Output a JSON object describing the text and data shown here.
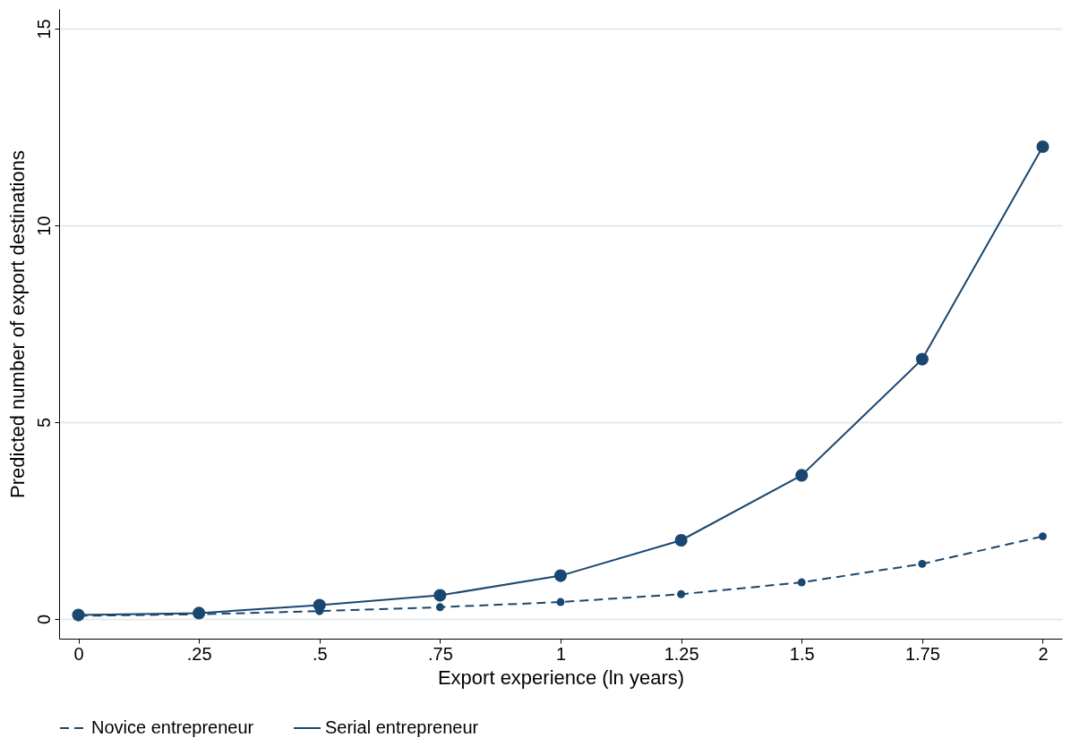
{
  "chart_data": {
    "type": "line",
    "xlabel": "Export experience (ln years)",
    "ylabel": "Predicted number of export destinations",
    "x": [
      0,
      0.25,
      0.5,
      0.75,
      1,
      1.25,
      1.5,
      1.75,
      2
    ],
    "series": [
      {
        "name": "Novice entrepreneur",
        "color": "#1a476f",
        "line_style": "dashed",
        "values": [
          0.08,
          0.12,
          0.2,
          0.3,
          0.43,
          0.63,
          0.93,
          1.4,
          2.1
        ]
      },
      {
        "name": "Serial entrepreneur",
        "color": "#1a476f",
        "line_style": "solid",
        "values": [
          0.1,
          0.15,
          0.35,
          0.6,
          1.1,
          2.0,
          3.65,
          6.6,
          12.0
        ]
      }
    ],
    "xlim": [
      -0.04,
      2.04
    ],
    "ylim": [
      -0.5,
      15.5
    ],
    "xticks": [
      0,
      {
        "value": 0.25,
        "label": ".25"
      },
      {
        "value": 0.5,
        "label": ".5"
      },
      {
        "value": 0.75,
        "label": ".75"
      },
      1,
      1.25,
      1.5,
      1.75,
      2
    ],
    "yticks": [
      0,
      5,
      10,
      15
    ],
    "grid": "y",
    "legend": "bottom",
    "marker": "circle"
  }
}
